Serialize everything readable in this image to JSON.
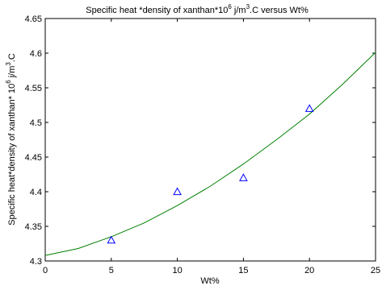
{
  "chart_data": {
    "type": "scatter",
    "title": "Specific heat *density of xanthan*10",
    "title_exp": "6",
    "title_mid": " j/m",
    "title_exp2": "3",
    "title_end": ".C versus Wt%",
    "xlabel": "Wt%",
    "ylabel": "Specific heat*density of xanthan* 10",
    "ylabel_exp": "6",
    "ylabel_mid": " j/m",
    "ylabel_exp2": "3",
    "ylabel_end": ".C",
    "xlim": [
      0,
      25
    ],
    "ylim": [
      4.3,
      4.65
    ],
    "x_ticks": [
      0,
      5,
      10,
      15,
      20,
      25
    ],
    "x_tick_labels": [
      "0",
      "5",
      "10",
      "15",
      "20",
      "25"
    ],
    "y_ticks": [
      4.3,
      4.35,
      4.4,
      4.45,
      4.5,
      4.55,
      4.6,
      4.65
    ],
    "y_tick_labels": [
      "4.3",
      "4.35",
      "4.4",
      "4.45",
      "4.5",
      "4.55",
      "4.6",
      "4.65"
    ],
    "grid": false,
    "series": [
      {
        "kind": "markers",
        "marker": "triangle",
        "color": "#0000ff",
        "x": [
          5,
          10,
          15,
          20
        ],
        "y": [
          4.33,
          4.4,
          4.42,
          4.52
        ]
      },
      {
        "kind": "line",
        "color": "#008000",
        "x": [
          0,
          2.5,
          5,
          7.5,
          10,
          12.5,
          15,
          17.5,
          20,
          22.5,
          25
        ],
        "y": [
          4.308,
          4.318,
          4.335,
          4.355,
          4.38,
          4.408,
          4.44,
          4.475,
          4.512,
          4.555,
          4.601
        ]
      }
    ]
  }
}
